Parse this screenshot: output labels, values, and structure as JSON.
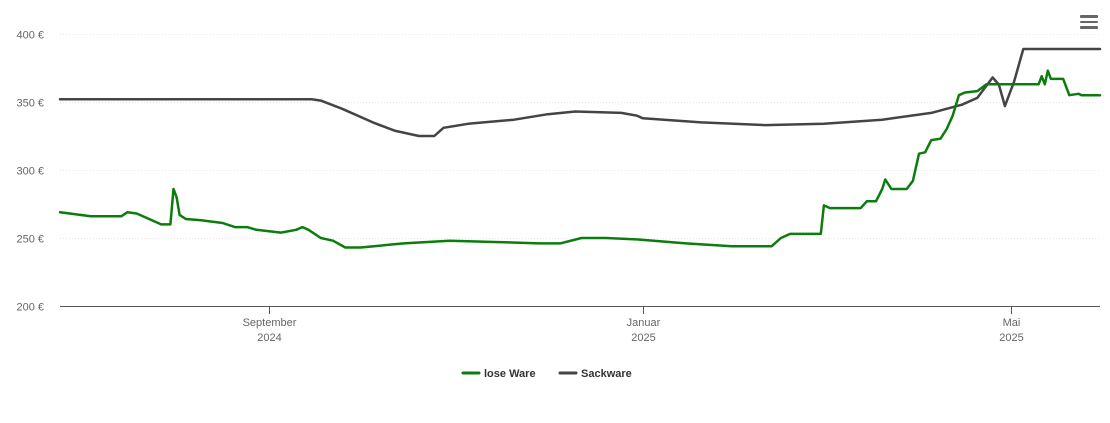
{
  "menu": {
    "icon": "hamburger-menu-icon",
    "color": "#666666"
  },
  "chart_data": {
    "type": "line",
    "title": "",
    "xlabel": "",
    "ylabel": "",
    "ylim": [
      200,
      400
    ],
    "y_ticks": [
      {
        "value": 200,
        "label": "200 €"
      },
      {
        "value": 250,
        "label": "250 €"
      },
      {
        "value": 300,
        "label": "300 €"
      },
      {
        "value": 350,
        "label": "350 €"
      },
      {
        "value": 400,
        "label": "400 €"
      }
    ],
    "xlim": [
      "2024-06-25",
      "2025-05-30"
    ],
    "x_ticks": [
      {
        "date": "2024-09-01",
        "month": "September",
        "year": "2024"
      },
      {
        "date": "2025-01-01",
        "month": "Januar",
        "year": "2025"
      },
      {
        "date": "2025-05-01",
        "month": "Mai",
        "year": "2025"
      }
    ],
    "grid": true,
    "legend_position": "bottom-center",
    "series": [
      {
        "name": "lose Ware",
        "color": "#0c7d0c",
        "points": [
          [
            "2024-06-25",
            269
          ],
          [
            "2024-07-05",
            266
          ],
          [
            "2024-07-15",
            266
          ],
          [
            "2024-07-17",
            269
          ],
          [
            "2024-07-20",
            268
          ],
          [
            "2024-07-28",
            260
          ],
          [
            "2024-07-31",
            260
          ],
          [
            "2024-08-01",
            286
          ],
          [
            "2024-08-02",
            280
          ],
          [
            "2024-08-03",
            267
          ],
          [
            "2024-08-05",
            264
          ],
          [
            "2024-08-10",
            263
          ],
          [
            "2024-08-17",
            261
          ],
          [
            "2024-08-21",
            258
          ],
          [
            "2024-08-25",
            258
          ],
          [
            "2024-08-28",
            256
          ],
          [
            "2024-09-05",
            254
          ],
          [
            "2024-09-10",
            256
          ],
          [
            "2024-09-12",
            258
          ],
          [
            "2024-09-14",
            256
          ],
          [
            "2024-09-18",
            250
          ],
          [
            "2024-09-22",
            248
          ],
          [
            "2024-09-26",
            243
          ],
          [
            "2024-10-01",
            243
          ],
          [
            "2024-10-15",
            246
          ],
          [
            "2024-10-30",
            248
          ],
          [
            "2024-11-15",
            247
          ],
          [
            "2024-11-28",
            246
          ],
          [
            "2024-12-05",
            246
          ],
          [
            "2024-12-12",
            250
          ],
          [
            "2024-12-20",
            250
          ],
          [
            "2024-12-30",
            249
          ],
          [
            "2025-01-15",
            246
          ],
          [
            "2025-01-30",
            244
          ],
          [
            "2025-02-12",
            244
          ],
          [
            "2025-02-15",
            250
          ],
          [
            "2025-02-18",
            253
          ],
          [
            "2025-02-25",
            253
          ],
          [
            "2025-02-28",
            253
          ],
          [
            "2025-03-01",
            274
          ],
          [
            "2025-03-03",
            272
          ],
          [
            "2025-03-13",
            272
          ],
          [
            "2025-03-15",
            277
          ],
          [
            "2025-03-18",
            277
          ],
          [
            "2025-03-20",
            286
          ],
          [
            "2025-03-21",
            293
          ],
          [
            "2025-03-23",
            286
          ],
          [
            "2025-03-28",
            286
          ],
          [
            "2025-03-30",
            292
          ],
          [
            "2025-04-01",
            312
          ],
          [
            "2025-04-03",
            313
          ],
          [
            "2025-04-05",
            322
          ],
          [
            "2025-04-08",
            323
          ],
          [
            "2025-04-10",
            330
          ],
          [
            "2025-04-12",
            340
          ],
          [
            "2025-04-14",
            355
          ],
          [
            "2025-04-16",
            357
          ],
          [
            "2025-04-20",
            358
          ],
          [
            "2025-04-23",
            363
          ],
          [
            "2025-05-05",
            363
          ],
          [
            "2025-05-10",
            363
          ],
          [
            "2025-05-11",
            369
          ],
          [
            "2025-05-12",
            363
          ],
          [
            "2025-05-13",
            373
          ],
          [
            "2025-05-14",
            367
          ],
          [
            "2025-05-18",
            367
          ],
          [
            "2025-05-20",
            355
          ],
          [
            "2025-05-23",
            356
          ],
          [
            "2025-05-24",
            355
          ],
          [
            "2025-05-30",
            355
          ]
        ]
      },
      {
        "name": "Sackware",
        "color": "#444444",
        "points": [
          [
            "2024-06-25",
            352
          ],
          [
            "2024-09-15",
            352
          ],
          [
            "2024-09-18",
            351
          ],
          [
            "2024-09-25",
            345
          ],
          [
            "2024-10-05",
            335
          ],
          [
            "2024-10-12",
            329
          ],
          [
            "2024-10-20",
            325
          ],
          [
            "2024-10-25",
            325
          ],
          [
            "2024-10-28",
            331
          ],
          [
            "2024-11-05",
            334
          ],
          [
            "2024-11-20",
            337
          ],
          [
            "2024-12-01",
            341
          ],
          [
            "2024-12-10",
            343
          ],
          [
            "2024-12-25",
            342
          ],
          [
            "2024-12-30",
            340
          ],
          [
            "2025-01-01",
            338
          ],
          [
            "2025-01-20",
            335
          ],
          [
            "2025-02-10",
            333
          ],
          [
            "2025-03-01",
            334
          ],
          [
            "2025-03-20",
            337
          ],
          [
            "2025-04-05",
            342
          ],
          [
            "2025-04-15",
            348
          ],
          [
            "2025-04-20",
            353
          ],
          [
            "2025-04-25",
            368
          ],
          [
            "2025-04-27",
            363
          ],
          [
            "2025-04-29",
            347
          ],
          [
            "2025-05-02",
            365
          ],
          [
            "2025-05-05",
            389
          ],
          [
            "2025-05-30",
            389
          ]
        ]
      }
    ]
  }
}
